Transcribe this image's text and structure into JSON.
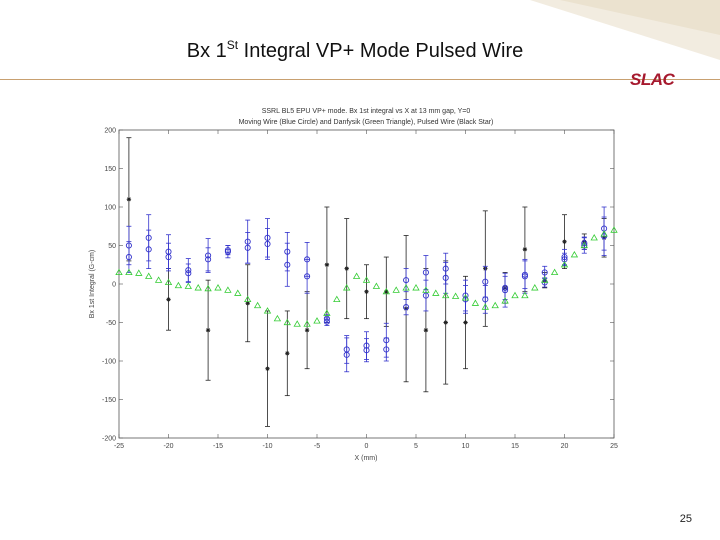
{
  "slide": {
    "title": "Bx 1",
    "title_sup": "St",
    "title_rest": " Integral VP+ Mode Pulsed Wire",
    "logo": "SLAC",
    "page_number": "25",
    "accent_color": "#a6192e",
    "corner_color": "#f2ece0"
  },
  "chart_data": {
    "type": "scatter",
    "title": "SSRL BL5 EPU VP+ mode. Bx 1st integral vs X at 13 mm gap, Y=0",
    "subtitle": "Moving Wire (Blue Circle) and Danfysik (Green Triangle), Pulsed Wire (Black Star)",
    "xlabel": "X (mm)",
    "ylabel": "Bx 1st Integral (G-cm)",
    "xlim": [
      -25,
      25
    ],
    "ylim": [
      -200,
      200
    ],
    "xticks": [
      "-25",
      "-20",
      "-15",
      "-10",
      "-5",
      "0",
      "5",
      "10",
      "15",
      "20",
      "25"
    ],
    "yticks": [
      "200",
      "150",
      "100",
      "50",
      "0",
      "-50",
      "-100",
      "-150",
      "-200"
    ],
    "grid": false,
    "series": [
      {
        "name": "Moving Wire (Blue Circle)",
        "color": "#3333cc",
        "marker": "circle",
        "points": [
          {
            "x": -24,
            "y": 50,
            "e": 25
          },
          {
            "x": -24,
            "y": 35,
            "e": 20
          },
          {
            "x": -22,
            "y": 60,
            "e": 30
          },
          {
            "x": -22,
            "y": 45,
            "e": 25
          },
          {
            "x": -20,
            "y": 42,
            "e": 22
          },
          {
            "x": -20,
            "y": 35,
            "e": 18
          },
          {
            "x": -18,
            "y": 18,
            "e": 15
          },
          {
            "x": -18,
            "y": 14,
            "e": 12
          },
          {
            "x": -16,
            "y": 37,
            "e": 22
          },
          {
            "x": -16,
            "y": 32,
            "e": 15
          },
          {
            "x": -14,
            "y": 42,
            "e": 8
          },
          {
            "x": -14,
            "y": 44,
            "e": 6
          },
          {
            "x": -12,
            "y": 55,
            "e": 28
          },
          {
            "x": -12,
            "y": 47,
            "e": 20
          },
          {
            "x": -10,
            "y": 60,
            "e": 25
          },
          {
            "x": -10,
            "y": 52,
            "e": 20
          },
          {
            "x": -8,
            "y": 42,
            "e": 25
          },
          {
            "x": -8,
            "y": 25,
            "e": 28
          },
          {
            "x": -6,
            "y": 32,
            "e": 22
          },
          {
            "x": -6,
            "y": 10,
            "e": 22
          },
          {
            "x": -4,
            "y": -45,
            "e": 5
          },
          {
            "x": -4,
            "y": -49,
            "e": 5
          },
          {
            "x": -2,
            "y": -92,
            "e": 22
          },
          {
            "x": -2,
            "y": -85,
            "e": 18
          },
          {
            "x": 0,
            "y": -80,
            "e": 18
          },
          {
            "x": 0,
            "y": -86,
            "e": 15
          },
          {
            "x": 2,
            "y": -73,
            "e": 22
          },
          {
            "x": 2,
            "y": -85,
            "e": 15
          },
          {
            "x": 4,
            "y": 5,
            "e": 15
          },
          {
            "x": 4,
            "y": -30,
            "e": 10
          },
          {
            "x": 6,
            "y": 15,
            "e": 22
          },
          {
            "x": 6,
            "y": -15,
            "e": 20
          },
          {
            "x": 8,
            "y": 20,
            "e": 20
          },
          {
            "x": 8,
            "y": 8,
            "e": 20
          },
          {
            "x": 10,
            "y": -15,
            "e": 20
          },
          {
            "x": 10,
            "y": -20,
            "e": 18
          },
          {
            "x": 12,
            "y": 3,
            "e": 20
          },
          {
            "x": 12,
            "y": -20,
            "e": 18
          },
          {
            "x": 14,
            "y": -8,
            "e": 22
          },
          {
            "x": 14,
            "y": -5,
            "e": 15
          },
          {
            "x": 16,
            "y": 10,
            "e": 22
          },
          {
            "x": 16,
            "y": 12,
            "e": 18
          },
          {
            "x": 18,
            "y": 15,
            "e": 8
          },
          {
            "x": 18,
            "y": 2,
            "e": 6
          },
          {
            "x": 20,
            "y": 35,
            "e": 10
          },
          {
            "x": 20,
            "y": 32,
            "e": 8
          },
          {
            "x": 22,
            "y": 50,
            "e": 10
          },
          {
            "x": 22,
            "y": 53,
            "e": 8
          },
          {
            "x": 24,
            "y": 72,
            "e": 28
          },
          {
            "x": 24,
            "y": 62,
            "e": 25
          }
        ]
      },
      {
        "name": "Danfysik (Green Triangle)",
        "color": "#33cc33",
        "marker": "triangle",
        "points": [
          {
            "x": -25,
            "y": 15
          },
          {
            "x": -24,
            "y": 15
          },
          {
            "x": -23,
            "y": 14
          },
          {
            "x": -22,
            "y": 10
          },
          {
            "x": -21,
            "y": 5
          },
          {
            "x": -20,
            "y": 2
          },
          {
            "x": -19,
            "y": -2
          },
          {
            "x": -18,
            "y": -3
          },
          {
            "x": -17,
            "y": -5
          },
          {
            "x": -16,
            "y": -6
          },
          {
            "x": -15,
            "y": -5
          },
          {
            "x": -14,
            "y": -8
          },
          {
            "x": -13,
            "y": -12
          },
          {
            "x": -12,
            "y": -20
          },
          {
            "x": -11,
            "y": -28
          },
          {
            "x": -10,
            "y": -35
          },
          {
            "x": -9,
            "y": -45
          },
          {
            "x": -8,
            "y": -50
          },
          {
            "x": -7,
            "y": -52
          },
          {
            "x": -6,
            "y": -52
          },
          {
            "x": -5,
            "y": -48
          },
          {
            "x": -4,
            "y": -38
          },
          {
            "x": -3,
            "y": -20
          },
          {
            "x": -2,
            "y": -5
          },
          {
            "x": -1,
            "y": 10
          },
          {
            "x": 0,
            "y": 5
          },
          {
            "x": 1,
            "y": -3
          },
          {
            "x": 2,
            "y": -10
          },
          {
            "x": 3,
            "y": -8
          },
          {
            "x": 4,
            "y": -5
          },
          {
            "x": 5,
            "y": -5
          },
          {
            "x": 6,
            "y": -8
          },
          {
            "x": 7,
            "y": -12
          },
          {
            "x": 8,
            "y": -15
          },
          {
            "x": 9,
            "y": -16
          },
          {
            "x": 10,
            "y": -18
          },
          {
            "x": 11,
            "y": -25
          },
          {
            "x": 12,
            "y": -30
          },
          {
            "x": 13,
            "y": -28
          },
          {
            "x": 14,
            "y": -22
          },
          {
            "x": 15,
            "y": -15
          },
          {
            "x": 16,
            "y": -15
          },
          {
            "x": 17,
            "y": -5
          },
          {
            "x": 18,
            "y": 5
          },
          {
            "x": 19,
            "y": 15
          },
          {
            "x": 20,
            "y": 25
          },
          {
            "x": 21,
            "y": 38
          },
          {
            "x": 22,
            "y": 50
          },
          {
            "x": 23,
            "y": 60
          },
          {
            "x": 24,
            "y": 65
          },
          {
            "x": 25,
            "y": 70
          }
        ]
      },
      {
        "name": "Pulsed Wire (Black Star)",
        "color": "#222222",
        "marker": "star",
        "points": [
          {
            "x": -24,
            "y": 110,
            "e": 80
          },
          {
            "x": -20,
            "y": -20,
            "e": 40
          },
          {
            "x": -16,
            "y": -60,
            "e": 65
          },
          {
            "x": -12,
            "y": -25,
            "e": 50
          },
          {
            "x": -10,
            "y": -110,
            "e": 75
          },
          {
            "x": -8,
            "y": -90,
            "e": 55
          },
          {
            "x": -6,
            "y": -60,
            "e": 50
          },
          {
            "x": -4,
            "y": 25,
            "e": 75
          },
          {
            "x": -2,
            "y": 20,
            "e": 65
          },
          {
            "x": 0,
            "y": -10,
            "e": 35
          },
          {
            "x": 2,
            "y": -10,
            "e": 45
          },
          {
            "x": 4,
            "y": -32,
            "e": 95
          },
          {
            "x": 6,
            "y": -60,
            "e": 80
          },
          {
            "x": 8,
            "y": -50,
            "e": 80
          },
          {
            "x": 10,
            "y": -50,
            "e": 60
          },
          {
            "x": 12,
            "y": 20,
            "e": 75
          },
          {
            "x": 14,
            "y": -5,
            "e": 20
          },
          {
            "x": 16,
            "y": 45,
            "e": 55
          },
          {
            "x": 18,
            "y": 5,
            "e": 10
          },
          {
            "x": 20,
            "y": 55,
            "e": 35
          },
          {
            "x": 22,
            "y": 55,
            "e": 10
          },
          {
            "x": 24,
            "y": 60,
            "e": 25
          }
        ]
      }
    ]
  }
}
